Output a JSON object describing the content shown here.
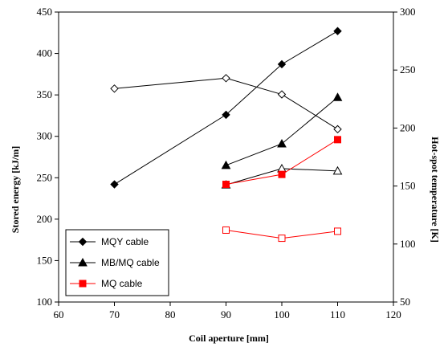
{
  "chart_data": {
    "type": "line",
    "xlabel": "Coil aperture [mm]",
    "ylabel_left": "Stored energy [kJ/m]",
    "ylabel_right": "Hot-spot temperature [K]",
    "xlim": [
      60,
      120
    ],
    "xticks": [
      60,
      70,
      80,
      90,
      100,
      110,
      120
    ],
    "ylim_left": [
      100,
      450
    ],
    "yticks_left": [
      100,
      150,
      200,
      250,
      300,
      350,
      400,
      450
    ],
    "ylim_right": [
      50,
      300
    ],
    "yticks_right": [
      50,
      100,
      150,
      200,
      250,
      300
    ],
    "grid": false,
    "legend_position": "bottom-left",
    "series": [
      {
        "name": "MQY cable",
        "id": "mqy-energy",
        "axis": "left",
        "marker": "diamond",
        "filled": true,
        "color": "#000000",
        "x": [
          70,
          90,
          100,
          110
        ],
        "y": [
          242,
          326,
          387,
          427
        ],
        "legend": true
      },
      {
        "name": "",
        "id": "mqy-temperature",
        "axis": "right",
        "marker": "diamond",
        "filled": false,
        "color": "#000000",
        "x": [
          70,
          90,
          100,
          110
        ],
        "y": [
          234,
          243,
          229,
          199
        ],
        "legend": false
      },
      {
        "name": "MB/MQ cable",
        "id": "mbmq-energy",
        "axis": "left",
        "marker": "triangle",
        "filled": true,
        "color": "#000000",
        "x": [
          90,
          100,
          110
        ],
        "y": [
          265,
          291,
          347
        ],
        "legend": true
      },
      {
        "name": "",
        "id": "mbmq-temperature",
        "axis": "right",
        "marker": "triangle",
        "filled": false,
        "color": "#000000",
        "x": [
          90,
          100,
          110
        ],
        "y": [
          151,
          165,
          163
        ],
        "legend": false
      },
      {
        "name": "MQ cable",
        "id": "mq-energy",
        "axis": "left",
        "marker": "square",
        "filled": true,
        "color": "#ff0000",
        "x": [
          90,
          100,
          110
        ],
        "y": [
          242,
          254,
          296
        ],
        "legend": true
      },
      {
        "name": "",
        "id": "mq-temperature",
        "axis": "right",
        "marker": "square",
        "filled": false,
        "color": "#ff0000",
        "x": [
          90,
          100,
          110
        ],
        "y": [
          112,
          105,
          111
        ],
        "legend": false
      }
    ]
  }
}
